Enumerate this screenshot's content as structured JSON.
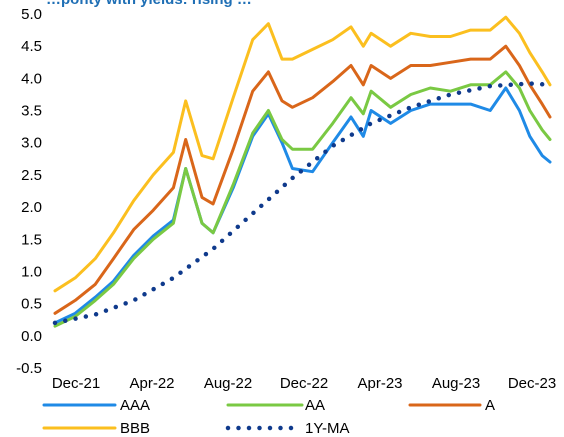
{
  "chart_data": {
    "type": "line",
    "title": "…ponty with yields: rising …",
    "xlabel": "",
    "ylabel": "",
    "x_ticks": [
      "Dec-21",
      "Apr-22",
      "Aug-22",
      "Dec-22",
      "Apr-23",
      "Aug-23",
      "Dec-23"
    ],
    "x_range": [
      "2021-12-01",
      "2024-01-01"
    ],
    "ylim": [
      -0.5,
      5.0
    ],
    "y_ticks": [
      -0.5,
      0.0,
      0.5,
      1.0,
      1.5,
      2.0,
      2.5,
      3.0,
      3.5,
      4.0,
      4.5,
      5.0
    ],
    "grid": false,
    "legend_position": "bottom",
    "series": [
      {
        "name": "AAA",
        "color": "#1f8ae6",
        "style": "solid",
        "x": [
          "2021-12-01",
          "2022-01-01",
          "2022-02-01",
          "2022-03-01",
          "2022-04-01",
          "2022-05-01",
          "2022-06-01",
          "2022-06-20",
          "2022-07-15",
          "2022-08-01",
          "2022-09-01",
          "2022-10-01",
          "2022-10-25",
          "2022-11-15",
          "2022-12-01",
          "2023-01-01",
          "2023-02-01",
          "2023-03-01",
          "2023-03-20",
          "2023-04-01",
          "2023-05-01",
          "2023-06-01",
          "2023-07-01",
          "2023-08-01",
          "2023-09-01",
          "2023-10-01",
          "2023-10-25",
          "2023-11-15",
          "2023-12-01",
          "2023-12-20",
          "2024-01-01"
        ],
        "y": [
          0.2,
          0.35,
          0.6,
          0.85,
          1.25,
          1.55,
          1.8,
          2.6,
          1.75,
          1.6,
          2.3,
          3.1,
          3.45,
          3.0,
          2.6,
          2.55,
          3.0,
          3.4,
          3.1,
          3.5,
          3.3,
          3.5,
          3.6,
          3.6,
          3.6,
          3.5,
          3.85,
          3.5,
          3.1,
          2.8,
          2.7
        ]
      },
      {
        "name": "AA",
        "color": "#7ac943",
        "style": "solid",
        "x": [
          "2021-12-01",
          "2022-01-01",
          "2022-02-01",
          "2022-03-01",
          "2022-04-01",
          "2022-05-01",
          "2022-06-01",
          "2022-06-20",
          "2022-07-15",
          "2022-08-01",
          "2022-09-01",
          "2022-10-01",
          "2022-10-25",
          "2022-11-15",
          "2022-12-01",
          "2023-01-01",
          "2023-02-01",
          "2023-03-01",
          "2023-03-20",
          "2023-04-01",
          "2023-05-01",
          "2023-06-01",
          "2023-07-01",
          "2023-08-01",
          "2023-09-01",
          "2023-10-01",
          "2023-10-25",
          "2023-11-15",
          "2023-12-01",
          "2023-12-20",
          "2024-01-01"
        ],
        "y": [
          0.15,
          0.3,
          0.55,
          0.8,
          1.2,
          1.5,
          1.75,
          2.6,
          1.75,
          1.6,
          2.35,
          3.15,
          3.5,
          3.05,
          2.9,
          2.9,
          3.3,
          3.7,
          3.45,
          3.8,
          3.55,
          3.75,
          3.85,
          3.8,
          3.9,
          3.9,
          4.1,
          3.85,
          3.5,
          3.2,
          3.05
        ]
      },
      {
        "name": "A",
        "color": "#d9661a",
        "style": "solid",
        "x": [
          "2021-12-01",
          "2022-01-01",
          "2022-02-01",
          "2022-03-01",
          "2022-04-01",
          "2022-05-01",
          "2022-06-01",
          "2022-06-20",
          "2022-07-15",
          "2022-08-01",
          "2022-09-01",
          "2022-10-01",
          "2022-10-25",
          "2022-11-15",
          "2022-12-01",
          "2023-01-01",
          "2023-02-01",
          "2023-03-01",
          "2023-03-20",
          "2023-04-01",
          "2023-05-01",
          "2023-06-01",
          "2023-07-01",
          "2023-08-01",
          "2023-09-01",
          "2023-10-01",
          "2023-10-25",
          "2023-11-15",
          "2023-12-01",
          "2023-12-20",
          "2024-01-01"
        ],
        "y": [
          0.35,
          0.55,
          0.8,
          1.2,
          1.65,
          1.95,
          2.3,
          3.05,
          2.15,
          2.05,
          2.9,
          3.8,
          4.1,
          3.65,
          3.55,
          3.7,
          3.95,
          4.2,
          3.9,
          4.2,
          4.0,
          4.2,
          4.2,
          4.25,
          4.3,
          4.3,
          4.5,
          4.2,
          3.9,
          3.6,
          3.4
        ]
      },
      {
        "name": "BBB",
        "color": "#fbbf1f",
        "style": "solid",
        "x": [
          "2021-12-01",
          "2022-01-01",
          "2022-02-01",
          "2022-03-01",
          "2022-04-01",
          "2022-05-01",
          "2022-06-01",
          "2022-06-20",
          "2022-07-15",
          "2022-08-01",
          "2022-09-01",
          "2022-10-01",
          "2022-10-25",
          "2022-11-15",
          "2022-12-01",
          "2023-01-01",
          "2023-02-01",
          "2023-03-01",
          "2023-03-20",
          "2023-04-01",
          "2023-05-01",
          "2023-06-01",
          "2023-07-01",
          "2023-08-01",
          "2023-09-01",
          "2023-10-01",
          "2023-10-25",
          "2023-11-15",
          "2023-12-01",
          "2023-12-20",
          "2024-01-01"
        ],
        "y": [
          0.7,
          0.9,
          1.2,
          1.6,
          2.1,
          2.5,
          2.85,
          3.65,
          2.8,
          2.75,
          3.7,
          4.6,
          4.85,
          4.3,
          4.3,
          4.45,
          4.6,
          4.8,
          4.5,
          4.7,
          4.5,
          4.7,
          4.65,
          4.65,
          4.75,
          4.75,
          4.95,
          4.7,
          4.4,
          4.1,
          3.9
        ]
      },
      {
        "name": "1Y-MA",
        "color": "#0f3a8c",
        "style": "dotted",
        "x": [
          "2021-12-01",
          "2022-02-01",
          "2022-04-01",
          "2022-06-01",
          "2022-08-01",
          "2022-10-01",
          "2022-12-01",
          "2023-02-01",
          "2023-04-01",
          "2023-06-01",
          "2023-08-01",
          "2023-10-01",
          "2023-12-01",
          "2024-01-01"
        ],
        "y": [
          0.2,
          0.33,
          0.55,
          0.9,
          1.35,
          1.9,
          2.45,
          2.95,
          3.3,
          3.55,
          3.75,
          3.88,
          3.92,
          3.9
        ]
      }
    ]
  }
}
